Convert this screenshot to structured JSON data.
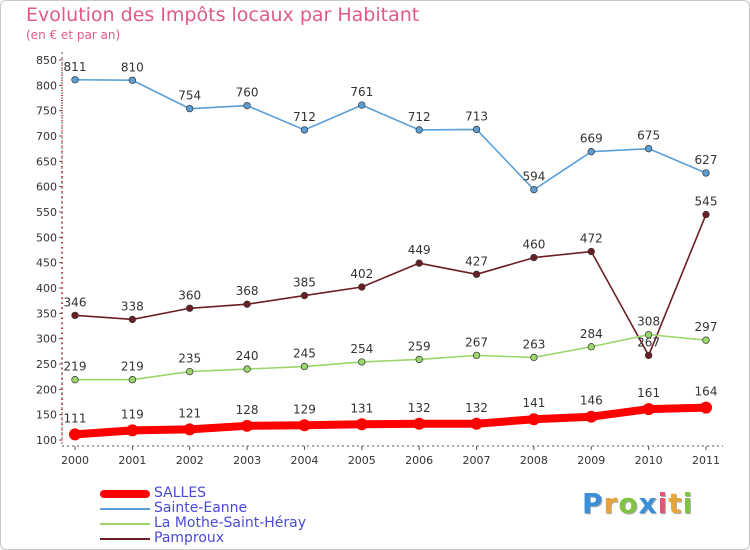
{
  "title": "Evolution des Impôts locaux par Habitant",
  "subtitle": "(en € et par an)",
  "logo": {
    "text": "Proxiti",
    "colors": [
      "#3b8fd9",
      "#e8a33a",
      "#7fc244",
      "#3b8fd9",
      "#e0567a",
      "#e8a33a",
      "#7fc244"
    ]
  },
  "chart_data": {
    "type": "line",
    "x": [
      "2000",
      "2001",
      "2002",
      "2003",
      "2004",
      "2005",
      "2006",
      "2007",
      "2008",
      "2009",
      "2010",
      "2011"
    ],
    "ylim": [
      100,
      850
    ],
    "yticks": [
      100,
      150,
      200,
      250,
      300,
      350,
      400,
      450,
      500,
      550,
      600,
      650,
      700,
      750,
      800,
      850
    ],
    "grid": false,
    "legend_position": "bottom-left",
    "series": [
      {
        "name": "Sainte-Eanne",
        "color": "#5b9fd6",
        "values": [
          811,
          810,
          754,
          760,
          712,
          761,
          712,
          713,
          594,
          669,
          675,
          627
        ],
        "labels": [
          "811",
          "810",
          "754",
          "760",
          "712",
          "761",
          "712",
          "713",
          "594",
          "669",
          "675",
          "627"
        ]
      },
      {
        "name": "Pamproux",
        "color": "#6b1f24",
        "values": [
          346,
          338,
          360,
          368,
          385,
          402,
          449,
          427,
          460,
          472,
          267,
          545
        ],
        "labels": [
          "346",
          "338",
          "360",
          "368",
          "385",
          "402",
          "449",
          "427",
          "460",
          "472",
          "267",
          "545"
        ]
      },
      {
        "name": "La Mothe-Saint-Héray",
        "color": "#9bd66a",
        "values": [
          219,
          219,
          235,
          240,
          245,
          254,
          259,
          267,
          263,
          284,
          308,
          297
        ],
        "labels": [
          "219",
          "219",
          "235",
          "240",
          "245",
          "254",
          "259",
          "267",
          "263",
          "284",
          "308",
          "297"
        ]
      },
      {
        "name": "SALLES",
        "color": "#ff0000",
        "values": [
          111,
          119,
          121,
          128,
          129,
          131,
          132,
          132,
          141,
          146,
          161,
          164
        ],
        "labels": [
          "111",
          "119",
          "121",
          "128",
          "129",
          "131",
          "132",
          "132",
          "141",
          "146",
          "161",
          "164"
        ]
      }
    ],
    "legend": [
      {
        "name": "SALLES",
        "color": "#ff0000"
      },
      {
        "name": "Sainte-Eanne",
        "color": "#5b9fd6"
      },
      {
        "name": "La Mothe-Saint-Héray",
        "color": "#9bd66a"
      },
      {
        "name": "Pamproux",
        "color": "#6b1f24"
      }
    ]
  }
}
